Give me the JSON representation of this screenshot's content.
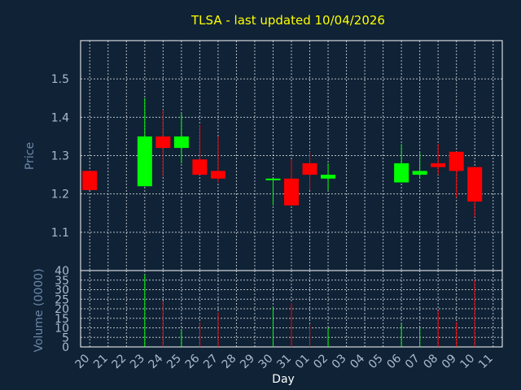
{
  "chart_data": {
    "type": "candlestick",
    "title": "TLSA - last updated 10/04/2026",
    "price_panel": {
      "ylabel": "Price",
      "ylim": [
        1.0,
        1.6
      ],
      "yticks": [
        "1.1",
        "1.2",
        "1.3",
        "1.4",
        "1.5"
      ]
    },
    "volume_panel": {
      "ylabel": "Volume (0000)",
      "ylim": [
        0,
        40
      ],
      "yticks": [
        "0",
        "5",
        "10",
        "15",
        "20",
        "25",
        "30",
        "35",
        "40"
      ]
    },
    "xlabel": "Day",
    "x_ticks": [
      "20",
      "21",
      "22",
      "23",
      "24",
      "25",
      "26",
      "27",
      "28",
      "29",
      "30",
      "31",
      "01",
      "02",
      "03",
      "04",
      "05",
      "06",
      "07",
      "08",
      "09",
      "10",
      "11"
    ],
    "colors": {
      "up": "#00ff00",
      "down": "#ff0000",
      "background": "#0f2236",
      "grid": "#ffffff",
      "title": "#ffff00"
    },
    "candles": [
      {
        "day": "20",
        "open": 1.26,
        "high": 1.26,
        "low": 1.21,
        "close": 1.21,
        "volume": 0
      },
      {
        "day": "23",
        "open": 1.22,
        "high": 1.45,
        "low": 1.22,
        "close": 1.35,
        "volume": 38
      },
      {
        "day": "24",
        "open": 1.35,
        "high": 1.42,
        "low": 1.245,
        "close": 1.32,
        "volume": 24
      },
      {
        "day": "25",
        "open": 1.32,
        "high": 1.41,
        "low": 1.28,
        "close": 1.35,
        "volume": 9
      },
      {
        "day": "26",
        "open": 1.29,
        "high": 1.38,
        "low": 1.25,
        "close": 1.25,
        "volume": 13
      },
      {
        "day": "27",
        "open": 1.26,
        "high": 1.35,
        "low": 1.23,
        "close": 1.24,
        "volume": 18
      },
      {
        "day": "30",
        "open": 1.24,
        "high": 1.24,
        "low": 1.17,
        "close": 1.24,
        "volume": 21
      },
      {
        "day": "31",
        "open": 1.24,
        "high": 1.29,
        "low": 1.17,
        "close": 1.17,
        "volume": 23
      },
      {
        "day": "01",
        "open": 1.28,
        "high": 1.31,
        "low": 1.21,
        "close": 1.25,
        "volume": 12
      },
      {
        "day": "02",
        "open": 1.24,
        "high": 1.28,
        "low": 1.21,
        "close": 1.25,
        "volume": 10
      },
      {
        "day": "06",
        "open": 1.23,
        "high": 1.33,
        "low": 1.23,
        "close": 1.28,
        "volume": 12
      },
      {
        "day": "07",
        "open": 1.25,
        "high": 1.31,
        "low": 1.24,
        "close": 1.26,
        "volume": 10
      },
      {
        "day": "08",
        "open": 1.28,
        "high": 1.33,
        "low": 1.25,
        "close": 1.27,
        "volume": 19
      },
      {
        "day": "09",
        "open": 1.31,
        "high": 1.31,
        "low": 1.19,
        "close": 1.26,
        "volume": 13
      },
      {
        "day": "10",
        "open": 1.27,
        "high": 1.27,
        "low": 1.14,
        "close": 1.18,
        "volume": 35
      }
    ]
  }
}
